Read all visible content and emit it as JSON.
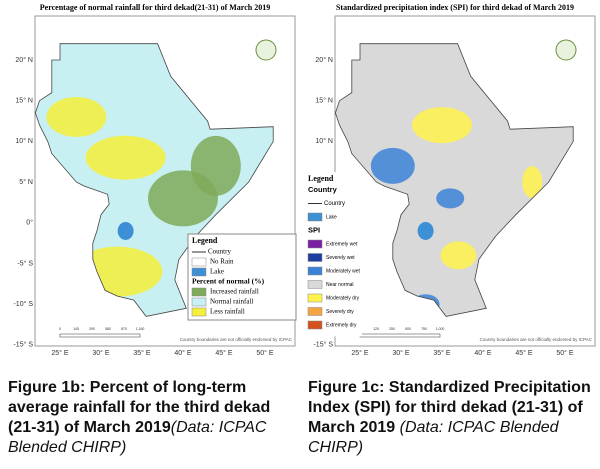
{
  "figures": [
    {
      "title": "Percentage of normal  rainfall for third dekad(21-31) of March 2019",
      "base_color": "#c8f0f2",
      "patches": [
        {
          "color": "#f5ef3a"
        },
        {
          "color": "#7faa5a"
        }
      ],
      "lat_labels": [
        "20° N",
        "15° N",
        "10° N",
        "5° N",
        "0°",
        "-5° S",
        "-10° S",
        "-15° S"
      ],
      "lon_labels": [
        "25° E",
        "30° E",
        "35° E",
        "40° E",
        "45° E",
        "50° E"
      ],
      "scale_labels": [
        "0",
        "145",
        "290",
        "580",
        "870",
        "1,160"
      ],
      "disclaimer": "Country boundaries are not officially endorsed by ICPAC",
      "legend": {
        "title": "Legend",
        "entries": [
          {
            "label": "Country",
            "kind": "line"
          },
          {
            "label": "No Rain",
            "kind": "box",
            "color": "#ffffff"
          },
          {
            "label": "Lake",
            "kind": "box",
            "color": "#3d8fd6"
          },
          {
            "label": "Percent of normal (%)",
            "kind": "heading"
          },
          {
            "label": "Increased rainfall",
            "kind": "box",
            "color": "#7faa5a"
          },
          {
            "label": "Normal rainfall",
            "kind": "box",
            "color": "#c8f0f2"
          },
          {
            "label": "Less rainfall",
            "kind": "box",
            "color": "#f5ef3a"
          }
        ]
      },
      "caption": "Figure 1b: Percent of long-term average rainfall for the third dekad (21-31) of March 2019",
      "caption_note": "(Data: ICPAC Blended CHIRP)"
    },
    {
      "title": "Standardized precipitation index (SPI) for third dekad of  March  2019",
      "base_color": "#d9d9d9",
      "patches": [
        {
          "color": "#fff24a"
        },
        {
          "color": "#3b82d6"
        }
      ],
      "lat_labels": [
        "20° N",
        "15° N",
        "10° N",
        "5° N",
        "0°",
        "-5° S",
        "-10° S",
        "-15° S"
      ],
      "lon_labels": [
        "25° E",
        "30° E",
        "35° E",
        "40° E",
        "45° E",
        "50° E"
      ],
      "scale_labels": [
        "0",
        "125",
        "250",
        "500",
        "750",
        "1,000"
      ],
      "disclaimer": "Country boundaries are not officially endorsed by ICPAC",
      "legend": {
        "title": "Legend",
        "entries": [
          {
            "label": "Country",
            "kind": "heading"
          },
          {
            "label": "Country",
            "kind": "line"
          },
          {
            "label": "Lake",
            "kind": "box",
            "color": "#3d8fd6"
          },
          {
            "label": "SPI",
            "kind": "heading"
          },
          {
            "label": "Extremely wet",
            "kind": "box",
            "color": "#7b1fa2"
          },
          {
            "label": "Severely wet",
            "kind": "box",
            "color": "#1f3fa0"
          },
          {
            "label": "Moderately wet",
            "kind": "box",
            "color": "#3b82d6"
          },
          {
            "label": "Near normal",
            "kind": "box",
            "color": "#d9d9d9"
          },
          {
            "label": "Moderately dry",
            "kind": "box",
            "color": "#fff24a"
          },
          {
            "label": "Severely dry",
            "kind": "box",
            "color": "#f4a442"
          },
          {
            "label": "Extremely dry",
            "kind": "box",
            "color": "#d2521e"
          }
        ]
      },
      "caption": "Figure 1c: Standardized Precipitation Index (SPI) for third dekad (21-31) of March 2019",
      "caption_note": "(Data: ICPAC Blended CHIRP)"
    }
  ]
}
